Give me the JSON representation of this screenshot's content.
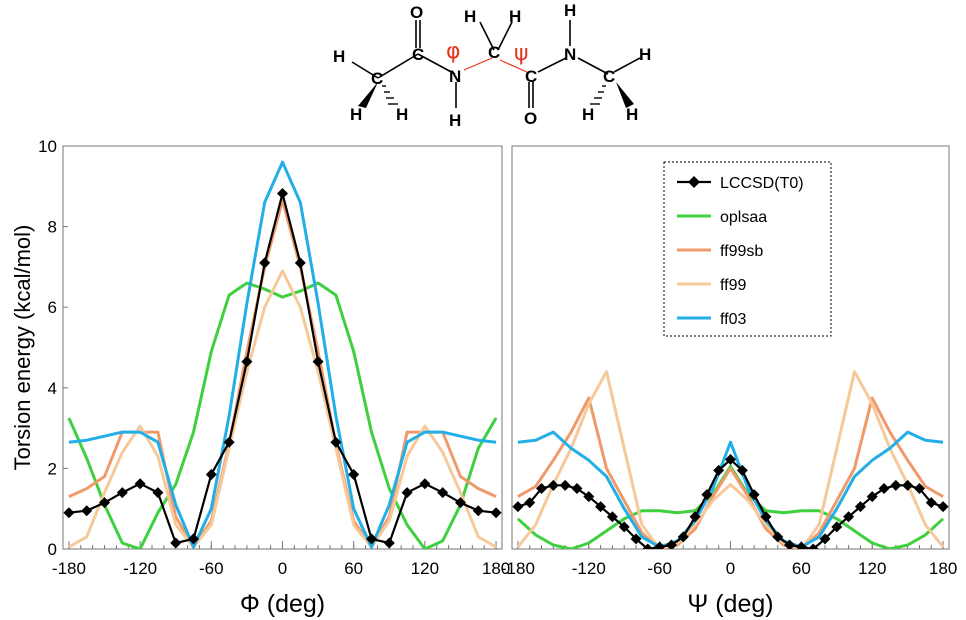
{
  "molecule": {
    "atoms": [
      "O",
      "H",
      "H",
      "H",
      "H",
      "C",
      "C",
      "C",
      "C",
      "C",
      "N",
      "N",
      "H",
      "H",
      "H",
      "H",
      "H",
      "H",
      "O",
      "H"
    ],
    "phi_symbol": "φ",
    "psi_symbol": "ψ"
  },
  "colors": {
    "LCCSD(T0)": "#000000",
    "oplsaa": "#3fd03f",
    "ff99sb": "#f09a6c",
    "ff99": "#f7c99a",
    "ff03": "#22aee6"
  },
  "chart_data": [
    {
      "type": "line",
      "panel": "left",
      "xlabel": "Φ (deg)",
      "ylabel": "Torsion energy (kcal/mol)",
      "xlim": [
        -185,
        185
      ],
      "ylim": [
        0,
        10
      ],
      "x_ticks": [
        -180,
        -120,
        -60,
        0,
        60,
        120,
        180
      ],
      "y_ticks": [
        0,
        2,
        4,
        6,
        8,
        10
      ],
      "x_tick_labels": [
        "-180",
        "-120",
        "-60",
        "0",
        "60",
        "120",
        "180"
      ],
      "y_tick_labels": [
        "0",
        "2",
        "4",
        "6",
        "8",
        "10"
      ],
      "series": [
        {
          "name": "oplsaa",
          "x": [
            -180,
            -165,
            -150,
            -135,
            -120,
            -105,
            -90,
            -75,
            -60,
            -45,
            -30,
            -15,
            0,
            15,
            30,
            45,
            60,
            75,
            90,
            105,
            120,
            135,
            150,
            165,
            180
          ],
          "y": [
            3.25,
            2.25,
            1.1,
            0.15,
            0.0,
            0.9,
            1.6,
            2.9,
            4.9,
            6.3,
            6.6,
            6.45,
            6.25,
            6.4,
            6.6,
            6.3,
            4.9,
            2.9,
            1.5,
            0.6,
            0.0,
            0.2,
            1.1,
            2.5,
            3.25
          ]
        },
        {
          "name": "ff99sb",
          "x": [
            -180,
            -165,
            -150,
            -135,
            -120,
            -105,
            -90,
            -75,
            -60,
            -45,
            -30,
            -15,
            0,
            15,
            30,
            45,
            60,
            75,
            90,
            105,
            120,
            135,
            150,
            165,
            180
          ],
          "y": [
            1.3,
            1.5,
            1.8,
            2.9,
            2.9,
            2.9,
            0.8,
            0.05,
            0.7,
            2.6,
            4.9,
            7.0,
            8.65,
            7.0,
            4.9,
            2.6,
            0.7,
            0.05,
            0.8,
            2.9,
            2.9,
            2.9,
            1.8,
            1.5,
            1.3
          ]
        },
        {
          "name": "ff99",
          "x": [
            -180,
            -165,
            -150,
            -135,
            -120,
            -105,
            -90,
            -75,
            -60,
            -45,
            -30,
            -15,
            0,
            15,
            30,
            45,
            60,
            75,
            90,
            105,
            120,
            135,
            150,
            165,
            180
          ],
          "y": [
            0.05,
            0.3,
            1.4,
            2.4,
            3.05,
            2.3,
            0.6,
            0.05,
            0.6,
            2.5,
            4.4,
            6.0,
            6.9,
            6.0,
            4.4,
            2.5,
            0.6,
            0.05,
            0.7,
            2.3,
            3.05,
            2.4,
            1.4,
            0.3,
            0.05
          ]
        },
        {
          "name": "ff03",
          "x": [
            -180,
            -165,
            -150,
            -135,
            -120,
            -105,
            -90,
            -75,
            -60,
            -45,
            -30,
            -15,
            0,
            15,
            30,
            45,
            60,
            75,
            90,
            105,
            120,
            135,
            150,
            165,
            180
          ],
          "y": [
            2.65,
            2.7,
            2.8,
            2.9,
            2.9,
            2.65,
            1.1,
            0.05,
            1.0,
            3.3,
            6.1,
            8.6,
            9.6,
            8.6,
            6.1,
            3.3,
            1.0,
            0.05,
            1.1,
            2.65,
            2.9,
            2.9,
            2.8,
            2.7,
            2.65
          ]
        },
        {
          "name": "LCCSD(T0)",
          "x": [
            -180,
            -165,
            -150,
            -135,
            -120,
            -105,
            -90,
            -75,
            -60,
            -45,
            -30,
            -15,
            0,
            15,
            30,
            45,
            60,
            75,
            90,
            105,
            120,
            135,
            150,
            165,
            180
          ],
          "y": [
            0.9,
            0.95,
            1.15,
            1.4,
            1.62,
            1.4,
            0.15,
            0.25,
            1.85,
            2.65,
            4.65,
            7.1,
            8.82,
            7.1,
            4.65,
            2.65,
            1.85,
            0.25,
            0.15,
            1.4,
            1.62,
            1.4,
            1.15,
            0.95,
            0.9
          ],
          "markers": true
        }
      ]
    },
    {
      "type": "line",
      "panel": "right",
      "xlabel": "Ψ (deg)",
      "ylabel": "",
      "xlim": [
        -185,
        185
      ],
      "ylim": [
        0,
        10
      ],
      "x_ticks": [
        -180,
        -120,
        -60,
        0,
        60,
        120,
        180
      ],
      "x_tick_labels": [
        "-180",
        "-120",
        "-60",
        "0",
        "60",
        "120",
        "180"
      ],
      "legend": {
        "placement": "top-right",
        "entries": [
          "LCCSD(T0)",
          "oplsaa",
          "ff99sb",
          "ff99",
          "ff03"
        ]
      },
      "series": [
        {
          "name": "oplsaa",
          "x": [
            -180,
            -165,
            -150,
            -135,
            -120,
            -105,
            -90,
            -75,
            -60,
            -45,
            -30,
            -15,
            0,
            15,
            30,
            45,
            60,
            75,
            90,
            105,
            120,
            135,
            150,
            165,
            180
          ],
          "y": [
            0.75,
            0.35,
            0.1,
            0.0,
            0.15,
            0.45,
            0.75,
            0.95,
            0.95,
            0.9,
            0.95,
            1.35,
            2.05,
            1.35,
            0.95,
            0.9,
            0.95,
            0.95,
            0.75,
            0.45,
            0.15,
            0.0,
            0.1,
            0.35,
            0.75
          ]
        },
        {
          "name": "ff99sb",
          "x": [
            -180,
            -165,
            -150,
            -135,
            -120,
            -105,
            -90,
            -75,
            -60,
            -45,
            -30,
            -15,
            0,
            15,
            30,
            45,
            60,
            75,
            90,
            105,
            120,
            135,
            150,
            165,
            180
          ],
          "y": [
            1.3,
            1.55,
            2.2,
            2.9,
            3.75,
            2.0,
            1.2,
            0.4,
            0.0,
            0.1,
            0.5,
            1.3,
            2.0,
            1.3,
            0.5,
            0.1,
            0.0,
            0.4,
            1.2,
            2.0,
            3.75,
            2.9,
            2.2,
            1.55,
            1.3
          ]
        },
        {
          "name": "ff99",
          "x": [
            -180,
            -165,
            -150,
            -135,
            -120,
            -105,
            -90,
            -75,
            -60,
            -45,
            -30,
            -15,
            0,
            15,
            30,
            45,
            60,
            75,
            90,
            105,
            120,
            135,
            150,
            165,
            180
          ],
          "y": [
            0.05,
            0.6,
            1.6,
            2.5,
            3.6,
            4.4,
            2.5,
            0.6,
            0.0,
            0.15,
            0.6,
            1.2,
            1.6,
            1.2,
            0.6,
            0.15,
            0.0,
            0.6,
            2.5,
            4.4,
            3.6,
            2.5,
            1.6,
            0.6,
            0.05
          ]
        },
        {
          "name": "ff03",
          "x": [
            -180,
            -165,
            -150,
            -135,
            -120,
            -105,
            -90,
            -75,
            -60,
            -45,
            -30,
            -15,
            0,
            15,
            30,
            45,
            60,
            75,
            90,
            105,
            120,
            135,
            150,
            165,
            180
          ],
          "y": [
            2.65,
            2.7,
            2.9,
            2.5,
            2.2,
            1.8,
            1.0,
            0.3,
            0.05,
            0.2,
            0.7,
            1.5,
            2.65,
            1.5,
            0.7,
            0.2,
            0.05,
            0.3,
            1.0,
            1.8,
            2.2,
            2.5,
            2.9,
            2.7,
            2.65
          ]
        },
        {
          "name": "LCCSD(T0)",
          "x": [
            -180,
            -170,
            -160,
            -150,
            -140,
            -130,
            -120,
            -110,
            -100,
            -90,
            -80,
            -70,
            -60,
            -50,
            -40,
            -30,
            -20,
            -10,
            0,
            10,
            20,
            30,
            40,
            50,
            60,
            70,
            80,
            90,
            100,
            110,
            120,
            130,
            140,
            150,
            160,
            170,
            180
          ],
          "y": [
            1.05,
            1.15,
            1.5,
            1.58,
            1.58,
            1.5,
            1.3,
            1.05,
            0.8,
            0.55,
            0.25,
            0.0,
            0.05,
            0.1,
            0.3,
            0.8,
            1.35,
            1.95,
            2.22,
            1.95,
            1.35,
            0.8,
            0.3,
            0.1,
            0.05,
            0.0,
            0.25,
            0.55,
            0.8,
            1.05,
            1.3,
            1.5,
            1.58,
            1.58,
            1.5,
            1.15,
            1.05
          ],
          "markers": true
        }
      ]
    }
  ]
}
